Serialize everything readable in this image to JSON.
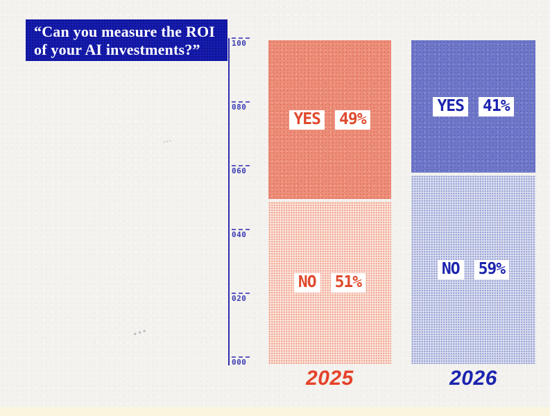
{
  "title": {
    "line1": "“Can you measure the ROI",
    "line2": "of your AI investments?”"
  },
  "axis": {
    "ticks": [
      "100",
      "080",
      "060",
      "040",
      "020",
      "000"
    ]
  },
  "bars": [
    {
      "year": "2025",
      "yes_label": "YES",
      "yes_value": "49%",
      "no_label": "NO",
      "no_value": "51%"
    },
    {
      "year": "2026",
      "yes_label": "YES",
      "yes_value": "41%",
      "no_label": "NO",
      "no_value": "59%"
    }
  ],
  "chart_data": {
    "type": "bar",
    "stacked": true,
    "title": "“Can you measure the ROI of your AI investments?”",
    "categories": [
      "2025",
      "2026"
    ],
    "series": [
      {
        "name": "YES",
        "values": [
          49,
          41
        ]
      },
      {
        "name": "NO",
        "values": [
          51,
          59
        ]
      }
    ],
    "unit": "%",
    "ylim": [
      0,
      100
    ],
    "y_ticks": [
      0,
      20,
      40,
      60,
      80,
      100
    ],
    "grid": false,
    "legend_position": "labels-inside-segments",
    "colors": {
      "yes_2025": "#ec8e7a",
      "no_2025": "#f6cdc1",
      "yes_2026": "#6f78c8",
      "no_2026": "#bdc3e3",
      "accent_red": "#e0492c",
      "accent_blue": "#1b23ad",
      "title_bg": "#161cae",
      "axis": "#2b2bae",
      "background": "#f3f2ee"
    }
  }
}
